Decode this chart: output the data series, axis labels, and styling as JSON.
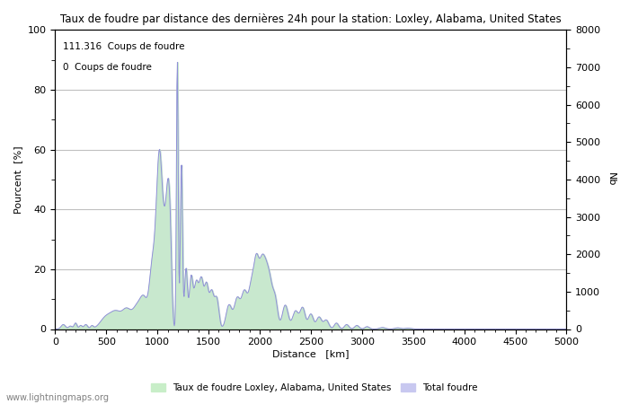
{
  "title": "Taux de foudre par distance des dernières 24h pour la station: Loxley, Alabama, United States",
  "xlabel": "Distance   [km]",
  "ylabel_left": "Pourcent  [%]",
  "ylabel_right": "Nb",
  "annotation1": "111.316  Coups de foudre",
  "annotation2": "0  Coups de foudre",
  "xlim": [
    0,
    5000
  ],
  "ylim_left": [
    0,
    100
  ],
  "ylim_right": [
    0,
    8000
  ],
  "xticks": [
    0,
    500,
    1000,
    1500,
    2000,
    2500,
    3000,
    3500,
    4000,
    4500,
    5000
  ],
  "yticks_left": [
    0,
    20,
    40,
    60,
    80,
    100
  ],
  "yticks_right": [
    0,
    1000,
    2000,
    3000,
    4000,
    5000,
    6000,
    7000,
    8000
  ],
  "legend_green": "Taux de foudre Loxley, Alabama, United States",
  "legend_blue": "Total foudre",
  "green_color": "#c8eec8",
  "blue_color": "#c8c8f0",
  "line_color": "#9090d8",
  "watermark": "www.lightningmaps.org",
  "bg_color": "#ffffff",
  "grid_color": "#c0c0c0"
}
